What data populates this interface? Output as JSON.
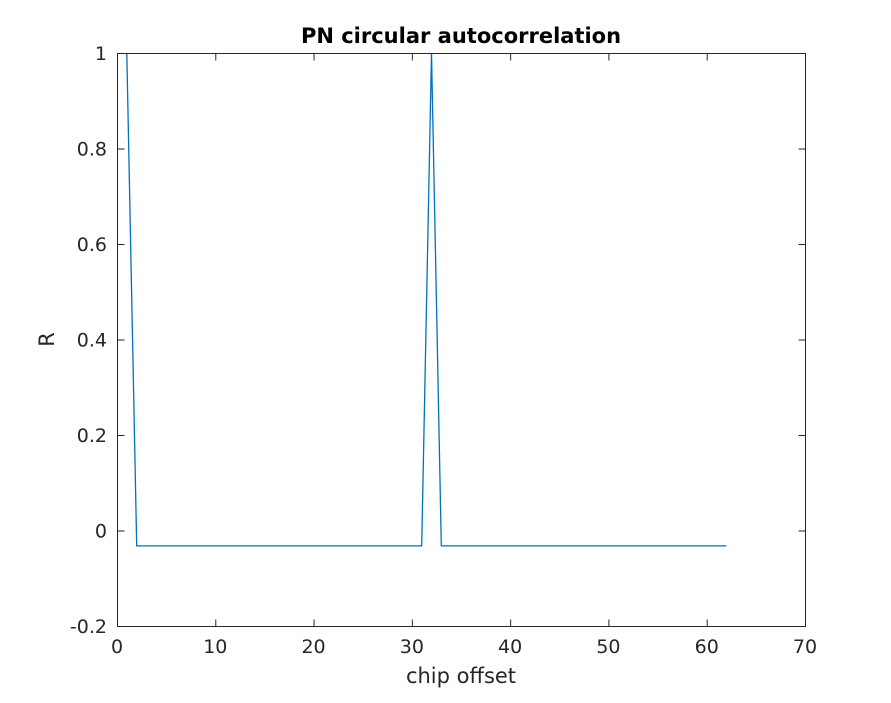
{
  "chart_data": {
    "type": "line",
    "title": "PN circular autocorrelation",
    "xlabel": "chip offset",
    "ylabel": "R",
    "xlim": [
      0,
      70
    ],
    "ylim": [
      -0.2,
      1
    ],
    "xticks": [
      0,
      10,
      20,
      30,
      40,
      50,
      60,
      70
    ],
    "xtick_labels": [
      "0",
      "10",
      "20",
      "30",
      "40",
      "50",
      "60",
      "70"
    ],
    "yticks": [
      -0.2,
      0,
      0.2,
      0.4,
      0.6,
      0.8,
      1
    ],
    "ytick_labels": [
      "-0.2",
      "0",
      "0.2",
      "0.4",
      "0.6",
      "0.8",
      "1"
    ],
    "grid": false,
    "series": [
      {
        "color": "#0072BD",
        "x": [
          1,
          2,
          31,
          32,
          33,
          62
        ],
        "y": [
          1,
          -0.0323,
          -0.0323,
          1,
          -0.0323,
          -0.0323
        ]
      }
    ]
  }
}
